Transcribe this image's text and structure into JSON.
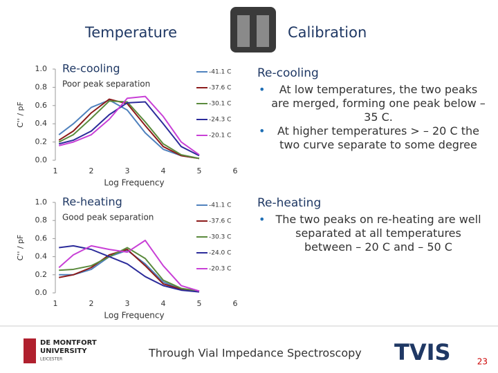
{
  "title_left": "Temperature",
  "title_right": "Calibration",
  "chart_data": [
    {
      "type": "line",
      "title": "Re-cooling",
      "subtitle": "Poor peak separation",
      "ylabel": "C'' / pF",
      "xlabel": "Log Frequency",
      "x": [
        1.1,
        1.5,
        2,
        2.5,
        3,
        3.5,
        4,
        4.5,
        5
      ],
      "series": [
        {
          "name": "-41.1 C",
          "color": "#4f81bd",
          "values": [
            0.28,
            0.4,
            0.58,
            0.66,
            0.55,
            0.3,
            0.12,
            0.05,
            0.02
          ]
        },
        {
          "name": "-37.6 C",
          "color": "#8b1a1a",
          "values": [
            0.22,
            0.32,
            0.52,
            0.67,
            0.62,
            0.38,
            0.15,
            0.05,
            0.02
          ]
        },
        {
          "name": "-30.1 C",
          "color": "#5a8a3c",
          "values": [
            0.2,
            0.28,
            0.46,
            0.65,
            0.64,
            0.42,
            0.18,
            0.06,
            0.02
          ]
        },
        {
          "name": "-24.3 C",
          "color": "#2b2b9a",
          "values": [
            0.18,
            0.22,
            0.32,
            0.5,
            0.63,
            0.64,
            0.4,
            0.15,
            0.05
          ]
        },
        {
          "name": "-20.1 C",
          "color": "#c83fd6",
          "values": [
            0.16,
            0.2,
            0.28,
            0.45,
            0.68,
            0.7,
            0.48,
            0.2,
            0.06
          ]
        }
      ],
      "xlim": [
        1,
        6
      ],
      "xticks": [
        1,
        2,
        3,
        4,
        5,
        6
      ],
      "ylim": [
        0,
        1
      ],
      "yticks": [
        {
          "value": 0,
          "label": "0.0"
        },
        {
          "value": 0.2,
          "label": "0.2"
        },
        {
          "value": 0.4,
          "label": "0.4"
        },
        {
          "value": 0.6,
          "label": "0.6"
        },
        {
          "value": 0.8,
          "label": "0.8"
        },
        {
          "value": 1,
          "label": "1.0"
        }
      ]
    },
    {
      "type": "line",
      "title": "Re-heating",
      "subtitle": "Good peak separation",
      "ylabel": "C'' / pF",
      "xlabel": "Log Frequency",
      "x": [
        1.1,
        1.5,
        2,
        2.5,
        3,
        3.5,
        4,
        4.5,
        5
      ],
      "series": [
        {
          "name": "-41.1 C",
          "color": "#4f81bd",
          "values": [
            0.2,
            0.2,
            0.26,
            0.4,
            0.47,
            0.32,
            0.12,
            0.04,
            0.02
          ]
        },
        {
          "name": "-37.6 C",
          "color": "#8b1a1a",
          "values": [
            0.17,
            0.2,
            0.28,
            0.42,
            0.48,
            0.3,
            0.1,
            0.04,
            0.02
          ]
        },
        {
          "name": "-30.3 C",
          "color": "#5a8a3c",
          "values": [
            0.25,
            0.26,
            0.3,
            0.4,
            0.5,
            0.38,
            0.14,
            0.05,
            0.02
          ]
        },
        {
          "name": "-24.0 C",
          "color": "#2b2b9a",
          "values": [
            0.5,
            0.52,
            0.48,
            0.4,
            0.32,
            0.18,
            0.08,
            0.03,
            0.01
          ]
        },
        {
          "name": "-20.3 C",
          "color": "#c83fd6",
          "values": [
            0.28,
            0.42,
            0.52,
            0.48,
            0.45,
            0.58,
            0.3,
            0.08,
            0.02
          ]
        }
      ],
      "xlim": [
        1,
        6
      ],
      "xticks": [
        1,
        2,
        3,
        4,
        5,
        6
      ],
      "ylim": [
        0,
        1
      ],
      "yticks": [
        {
          "value": 0,
          "label": "0.0"
        },
        {
          "value": 0.2,
          "label": "0.2"
        },
        {
          "value": 0.4,
          "label": "0.4"
        },
        {
          "value": 0.6,
          "label": "0.6"
        },
        {
          "value": 0.8,
          "label": "0.8"
        },
        {
          "value": 1,
          "label": "1.0"
        }
      ]
    }
  ],
  "notes": [
    {
      "heading": "Re-cooling",
      "bullets": [
        "At low temperatures, the two peaks are merged, forming one peak below –35 C.",
        "At higher temperatures > – 20 C the two curve separate to some degree"
      ]
    },
    {
      "heading": "Re-heating",
      "bullets": [
        "The two peaks on re-heating are well separated at all temperatures between – 20 C and – 50 C"
      ]
    }
  ],
  "footer": {
    "university": [
      "DE MONTFORT",
      "UNIVERSITY",
      "LEICESTER"
    ],
    "tagline": "Through Vial Impedance Spectroscopy",
    "logo": "TVIS",
    "page": "23"
  }
}
